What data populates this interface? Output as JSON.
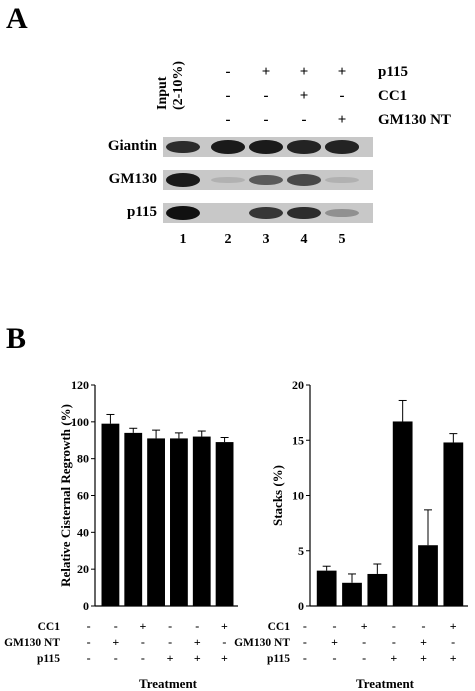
{
  "panel_a": {
    "letter": "A",
    "input_label_line1": "Input",
    "input_label_line2": "(2-10%)",
    "conditions": [
      {
        "label": "p115",
        "signs": [
          "-",
          "+",
          "+",
          "+"
        ]
      },
      {
        "label": "CC1",
        "signs": [
          "-",
          "-",
          "+",
          "-"
        ]
      },
      {
        "label": "GM130 NT",
        "signs": [
          "-",
          "-",
          "-",
          "+"
        ]
      }
    ],
    "blots": [
      {
        "label": "Giantin",
        "intensities": [
          0.85,
          0.95,
          0.95,
          0.9,
          0.9
        ]
      },
      {
        "label": "GM130",
        "intensities": [
          0.95,
          0.08,
          0.6,
          0.7,
          0.12
        ]
      },
      {
        "label": "p115",
        "intensities": [
          1.0,
          0.0,
          0.8,
          0.85,
          0.3
        ]
      }
    ],
    "lanes": [
      "1",
      "2",
      "3",
      "4",
      "5"
    ]
  },
  "panel_b": {
    "letter": "B",
    "treatment_rows": [
      {
        "label": "CC1",
        "signs": [
          "-",
          "-",
          "+",
          "-",
          "-",
          "+"
        ]
      },
      {
        "label": "GM130 NT",
        "signs": [
          "-",
          "+",
          "-",
          "-",
          "+",
          "-"
        ]
      },
      {
        "label": "p115",
        "signs": [
          "-",
          "-",
          "-",
          "+",
          "+",
          "+"
        ]
      }
    ]
  },
  "chart_data": [
    {
      "type": "bar",
      "title": "",
      "xlabel": "Treatment",
      "ylabel": "Relative Cisternal Regrowth (%)",
      "ylim": [
        0,
        120
      ],
      "yticks": [
        "0",
        "20",
        "40",
        "60",
        "80",
        "100",
        "120"
      ],
      "values": [
        99,
        94,
        91,
        91,
        92,
        89
      ],
      "errors": [
        5,
        2.5,
        4.5,
        3,
        3,
        2.5
      ],
      "grid": false
    },
    {
      "type": "bar",
      "title": "",
      "xlabel": "Treatment",
      "ylabel": "Stacks (%)",
      "ylim": [
        0,
        20
      ],
      "yticks": [
        "0",
        "5",
        "10",
        "15",
        "20"
      ],
      "values": [
        3.2,
        2.1,
        2.9,
        16.7,
        5.5,
        14.8
      ],
      "errors": [
        0.4,
        0.8,
        0.9,
        1.9,
        3.2,
        0.8
      ],
      "grid": false
    }
  ]
}
